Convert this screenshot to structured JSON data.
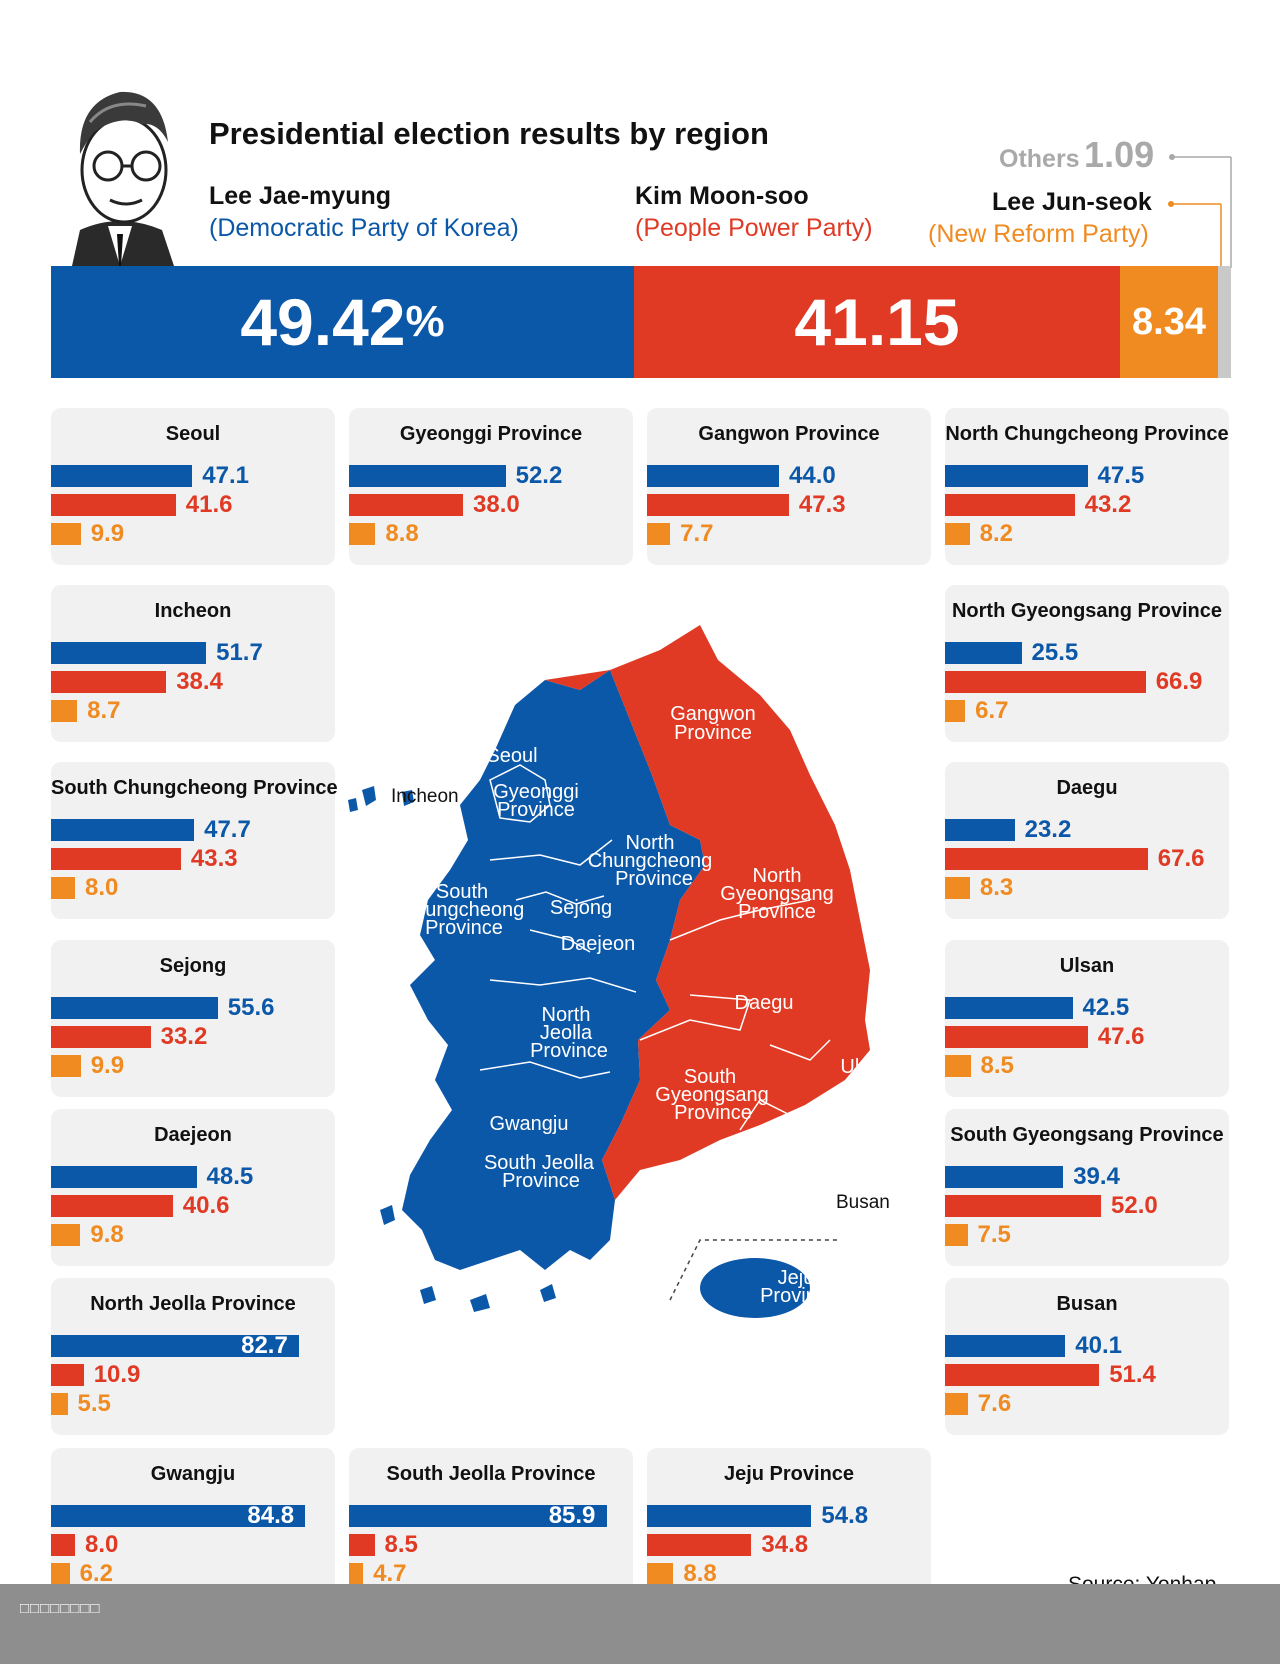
{
  "header": {
    "title": "Presidential election results by region",
    "candidates": [
      {
        "name": "Lee Jae-myung",
        "party": "(Democratic Party of Korea)"
      },
      {
        "name": "Kim Moon-soo",
        "party": "(People Power Party)"
      },
      {
        "name": "Lee Jun-seok",
        "party": "(New Reform Party)"
      }
    ],
    "others_label": "Others",
    "others_value": "1.09"
  },
  "colors": {
    "lee_jae_myung": "#0b57a8",
    "kim_moon_soo": "#e03a25",
    "lee_jun_seok": "#f08b22",
    "others": "#c9c9c9",
    "card": "#f1f1f1"
  },
  "chart_data": [
    {
      "type": "bar",
      "title": "Presidential election results by region",
      "categories": [
        "Lee Jae-myung",
        "Kim Moon-soo",
        "Lee Jun-seok",
        "Others"
      ],
      "values": [
        49.42,
        41.15,
        8.34,
        1.09
      ],
      "labels": [
        "49.42",
        "41.15",
        "8.34",
        "1.09"
      ],
      "unit": "%"
    },
    {
      "type": "bar",
      "categories": [
        "Seoul",
        "Gyeonggi Province",
        "Gangwon Province",
        "North Chungcheong Province",
        "Incheon",
        "North Gyeongsang Province",
        "South Chungcheong Province",
        "Daegu",
        "Sejong",
        "Ulsan",
        "Daejeon",
        "South Gyeongsang Province",
        "North Jeolla Province",
        "Busan",
        "Gwangju",
        "South Jeolla Province",
        "Jeju Province"
      ],
      "series": [
        {
          "values": [
            47.1,
            52.2,
            44.0,
            47.5,
            51.7,
            25.5,
            47.7,
            23.2,
            55.6,
            42.5,
            48.5,
            39.4,
            82.7,
            40.1,
            84.8,
            85.9,
            54.8
          ],
          "labels": [
            "47.1",
            "52.2",
            "44.0",
            "47.5",
            "51.7",
            "25.5",
            "47.7",
            "23.2",
            "55.6",
            "42.5",
            "48.5",
            "39.4",
            "82.7",
            "40.1",
            "84.8",
            "85.9",
            "54.8"
          ]
        },
        {
          "values": [
            41.6,
            38.0,
            47.3,
            43.2,
            38.4,
            66.9,
            43.3,
            67.6,
            33.2,
            47.6,
            40.6,
            52.0,
            10.9,
            51.4,
            8.0,
            8.5,
            34.8
          ],
          "labels": [
            "41.6",
            "38.0",
            "47.3",
            "43.2",
            "38.4",
            "66.9",
            "43.3",
            "67.6",
            "33.2",
            "47.6",
            "40.6",
            "52.0",
            "10.9",
            "51.4",
            "8.0",
            "8.5",
            "34.8"
          ]
        },
        {
          "values": [
            9.9,
            8.8,
            7.7,
            8.2,
            8.7,
            6.7,
            8.0,
            8.3,
            9.9,
            8.5,
            9.8,
            7.5,
            5.5,
            7.6,
            6.2,
            4.7,
            8.8
          ],
          "labels": [
            "9.9",
            "8.8",
            "7.7",
            "8.2",
            "8.7",
            "6.7",
            "8.0",
            "8.3",
            "9.9",
            "8.5",
            "9.8",
            "7.5",
            "5.5",
            "7.6",
            "6.2",
            "4.7",
            "8.8"
          ]
        }
      ]
    }
  ],
  "map": {
    "labels_inside": [
      "Seoul",
      "Gyeonggi",
      "Province",
      "Gangwon",
      "Province",
      "North",
      "Chungcheong",
      "Province",
      "North",
      "Gyeongsang",
      "Province",
      "South",
      "Chungcheong",
      "Province",
      "Sejong",
      "Daejeon",
      "Daegu",
      "Ulsan",
      "North",
      "Jeolla",
      "Province",
      "South",
      "Gyeongsang",
      "Province",
      "Gwangju",
      "South Jeolla",
      "Province",
      "Jeju",
      "Province"
    ],
    "labels_outside": [
      "Incheon",
      "Busan"
    ]
  },
  "source": "Source:  Yonhap",
  "footer": "□□□□□□□□"
}
